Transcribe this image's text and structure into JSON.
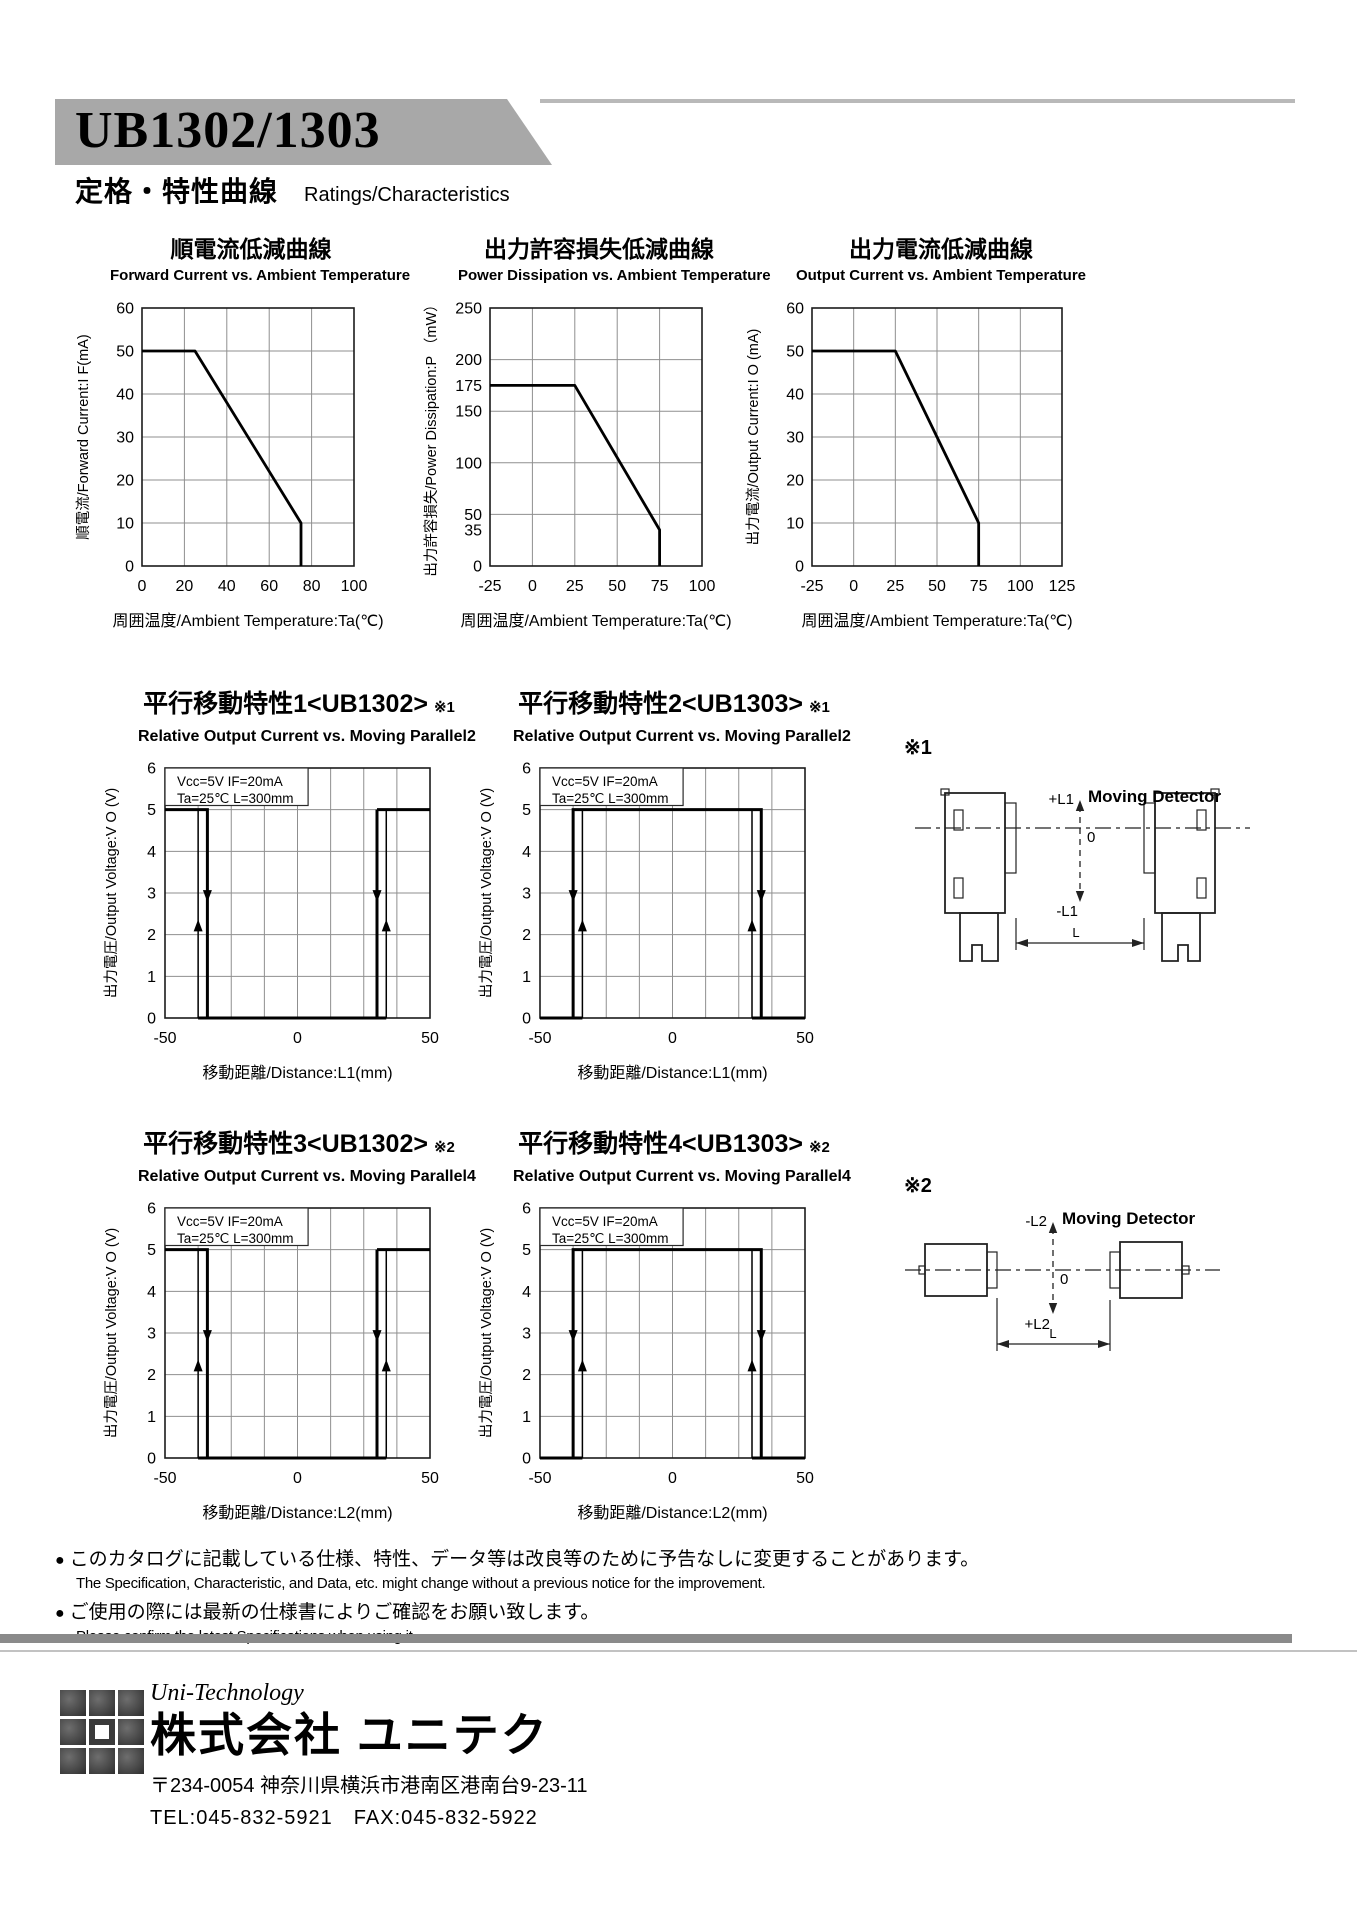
{
  "page": {
    "model": "UB1302/1303",
    "section_jp": "定格・特性曲線",
    "section_en": "Ratings/Characteristics",
    "banner_gray": "#a8a8a8",
    "bullet": "●"
  },
  "chart_data": [
    {
      "id": "forward-current-derating",
      "type": "line",
      "title_jp": "順電流低減曲線",
      "title_en": "Forward Current vs. Ambient Temperature",
      "xlabel": "周囲温度/Ambient Temperature:Ta(℃)",
      "ylabel": "順電流/Forward Current:I F(mA)",
      "xlim": [
        0,
        100
      ],
      "ylim": [
        0,
        60
      ],
      "xticks": [
        0,
        20,
        40,
        60,
        80,
        100
      ],
      "yticks": [
        0,
        10,
        20,
        30,
        40,
        50,
        60
      ],
      "xgrid": [
        20,
        40,
        60,
        80
      ],
      "ygrid": [
        10,
        20,
        30,
        40,
        50
      ],
      "points": [
        [
          0,
          50
        ],
        [
          25,
          50
        ],
        [
          75,
          10
        ],
        [
          75,
          0
        ]
      ]
    },
    {
      "id": "power-dissipation-derating",
      "type": "line",
      "title_jp": "出力許容損失低減曲線",
      "title_en": "Power Dissipation vs. Ambient Temperature",
      "xlabel": "周囲温度/Ambient Temperature:Ta(℃)",
      "ylabel": "出力許容損失/Power Dissipation:P （mW）",
      "xlim": [
        -25,
        100
      ],
      "ylim": [
        0,
        250
      ],
      "xticks": [
        -25,
        0,
        25,
        50,
        75,
        100
      ],
      "yticks": [
        0,
        35,
        50,
        100,
        150,
        175,
        200,
        250
      ],
      "xgrid": [
        0,
        25,
        50,
        75
      ],
      "ygrid": [
        50,
        100,
        150,
        200
      ],
      "points": [
        [
          -25,
          175
        ],
        [
          25,
          175
        ],
        [
          75,
          35
        ],
        [
          75,
          0
        ]
      ]
    },
    {
      "id": "output-current-derating",
      "type": "line",
      "title_jp": "出力電流低減曲線",
      "title_en": "Output Current vs. Ambient Temperature",
      "xlabel": "周囲温度/Ambient Temperature:Ta(℃)",
      "ylabel": "出力電流/Output Current:I O (mA)",
      "xlim": [
        -25,
        125
      ],
      "ylim": [
        0,
        60
      ],
      "xticks": [
        -25,
        0,
        25,
        50,
        75,
        100,
        125
      ],
      "yticks": [
        0,
        10,
        20,
        30,
        40,
        50,
        60
      ],
      "xgrid": [
        0,
        25,
        50,
        75,
        100
      ],
      "ygrid": [
        10,
        20,
        30,
        40,
        50
      ],
      "points": [
        [
          -25,
          50
        ],
        [
          25,
          50
        ],
        [
          75,
          10
        ],
        [
          75,
          0
        ]
      ]
    },
    {
      "id": "parallel-move-1-ub1302",
      "type": "line",
      "title_jp": "平行移動特性1<UB1302>",
      "ref": "※1",
      "title_en": "Relative Output Current vs. Moving Parallel2",
      "xlabel": "移動距離/Distance:L1(mm)",
      "ylabel": "出力電圧/Output Voltage:V O (V)",
      "conditions": [
        "Vcc=5V  IF=20mA",
        "Ta=25℃  L=300mm"
      ],
      "xlim": [
        -50,
        50
      ],
      "ylim": [
        0,
        6
      ],
      "xticks": [
        -50,
        0,
        50
      ],
      "yticks": [
        0,
        1,
        2,
        3,
        4,
        5,
        6
      ],
      "mode": "high_outside",
      "levels": {
        "high": 5,
        "low": 0
      },
      "transitions": {
        "up_left": -37.5,
        "down_left": -34,
        "down_right": 30,
        "up_right": 33.5
      }
    },
    {
      "id": "parallel-move-2-ub1303",
      "type": "line",
      "title_jp": "平行移動特性2<UB1303>",
      "ref": "※1",
      "title_en": "Relative Output Current vs. Moving Parallel2",
      "xlabel": "移動距離/Distance:L1(mm)",
      "ylabel": "出力電圧/Output Voltage:V O (V)",
      "conditions": [
        "Vcc=5V  IF=20mA",
        "Ta=25℃  L=300mm"
      ],
      "xlim": [
        -50,
        50
      ],
      "ylim": [
        0,
        6
      ],
      "xticks": [
        -50,
        0,
        50
      ],
      "yticks": [
        0,
        1,
        2,
        3,
        4,
        5,
        6
      ],
      "mode": "high_inside",
      "levels": {
        "high": 5,
        "low": 0
      },
      "transitions": {
        "down_left": -37.5,
        "up_left": -34,
        "up_right": 30,
        "down_right": 33.5
      }
    },
    {
      "id": "parallel-move-3-ub1302",
      "type": "line",
      "title_jp": "平行移動特性3<UB1302>",
      "ref": "※2",
      "title_en": "Relative Output Current vs. Moving Parallel4",
      "xlabel": "移動距離/Distance:L2(mm)",
      "ylabel": "出力電圧/Output Voltage:V O (V)",
      "conditions": [
        "Vcc=5V  IF=20mA",
        "Ta=25℃  L=300mm"
      ],
      "xlim": [
        -50,
        50
      ],
      "ylim": [
        0,
        6
      ],
      "xticks": [
        -50,
        0,
        50
      ],
      "yticks": [
        0,
        1,
        2,
        3,
        4,
        5,
        6
      ],
      "mode": "high_outside",
      "levels": {
        "high": 5,
        "low": 0
      },
      "transitions": {
        "up_left": -37.5,
        "down_left": -34,
        "down_right": 30,
        "up_right": 33.5
      }
    },
    {
      "id": "parallel-move-4-ub1303",
      "type": "line",
      "title_jp": "平行移動特性4<UB1303>",
      "ref": "※2",
      "title_en": "Relative Output Current vs. Moving Parallel4",
      "xlabel": "移動距離/Distance:L2(mm)",
      "ylabel": "出力電圧/Output Voltage:V O (V)",
      "conditions": [
        "Vcc=5V  IF=20mA",
        "Ta=25℃  L=300mm"
      ],
      "xlim": [
        -50,
        50
      ],
      "ylim": [
        0,
        6
      ],
      "xticks": [
        -50,
        0,
        50
      ],
      "yticks": [
        0,
        1,
        2,
        3,
        4,
        5,
        6
      ],
      "mode": "high_inside",
      "levels": {
        "high": 5,
        "low": 0
      },
      "transitions": {
        "down_left": -37.5,
        "up_left": -34,
        "up_right": 30,
        "down_right": 33.5
      }
    }
  ],
  "diagrams": [
    {
      "ref": "※1",
      "orientation": "vertical",
      "label_top": "+L1",
      "label_zero": "0",
      "label_bottom": "-L1",
      "caption": "Moving Detector",
      "dim_label": "L"
    },
    {
      "ref": "※2",
      "orientation": "horizontal",
      "label_top": "-L2",
      "label_zero": "0",
      "label_bottom": "+L2",
      "caption": "Moving Detector",
      "dim_label": "L"
    }
  ],
  "notes": [
    {
      "jp": "このカタログに記載している仕様、特性、データ等は改良等のために予告なしに変更することがあります。",
      "en": "The Specification, Characteristic, and Data, etc. might change without a previous notice for the improvement."
    },
    {
      "jp": "ご使用の際には最新の仕様書によりご確認をお願い致します。",
      "en": "Please confirm the latest Specifications when using it."
    }
  ],
  "company": {
    "name_en": "Uni-Technology",
    "name_jp": "株式会社 ユニテク",
    "address": "〒234-0054 神奈川県横浜市港南区港南台9-23-11",
    "tel_fax": "TEL:045-832-5921　FAX:045-832-5922"
  }
}
